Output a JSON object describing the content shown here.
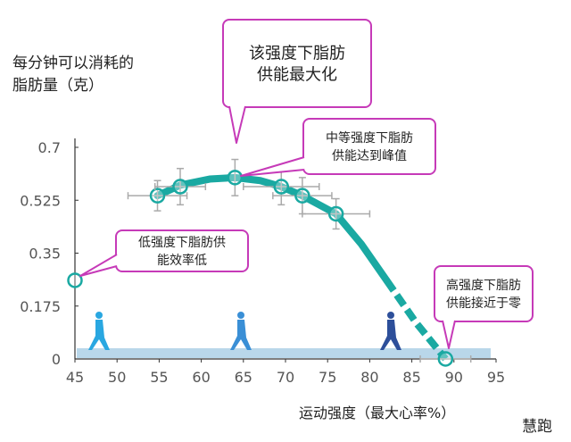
{
  "chart_data": {
    "type": "line",
    "ylabel": "每分钟可以消耗的\n脂肪量（克）",
    "xlabel": "运动强度（最大心率%）",
    "xlim": [
      45,
      95
    ],
    "ylim": [
      0,
      0.7
    ],
    "xticks": [
      "45",
      "50",
      "55",
      "60",
      "65",
      "70",
      "75",
      "80",
      "85",
      "90",
      "95"
    ],
    "yticks": [
      "0",
      "0.175",
      "0.35",
      "0.525",
      "0.7"
    ],
    "grid": false,
    "series": [
      {
        "points": [
          {
            "x": 45,
            "y": 0.26
          },
          {
            "x": 54.8,
            "y": 0.54,
            "xerr": 3.5,
            "yerr": 0.05
          },
          {
            "x": 57.5,
            "y": 0.57,
            "xerr": 3,
            "yerr": 0.06
          },
          {
            "x": 64,
            "y": 0.6,
            "xerr": 0,
            "yerr": 0.06
          },
          {
            "x": 69.5,
            "y": 0.57,
            "xerr": 4.5,
            "yerr": 0.06
          },
          {
            "x": 72,
            "y": 0.54,
            "xerr": 3.5,
            "yerr": 0.06
          },
          {
            "x": 76,
            "y": 0.48,
            "xerr": 4,
            "yerr": 0.05
          },
          {
            "x": 89,
            "y": 0,
            "xerr": 3,
            "yerr": 0
          }
        ]
      }
    ],
    "annotations": [
      "该强度下脂肪\n供能最大化",
      "中等强度下脂肪\n供能达到峰值",
      "低强度下脂肪供\n能效率低",
      "高强度下脂肪\n供能接近于零"
    ],
    "line_color": "#1aa9a2",
    "callout_color": "#c63ab8",
    "band_color": "#b9d7ea"
  },
  "watermark": "慧跑"
}
